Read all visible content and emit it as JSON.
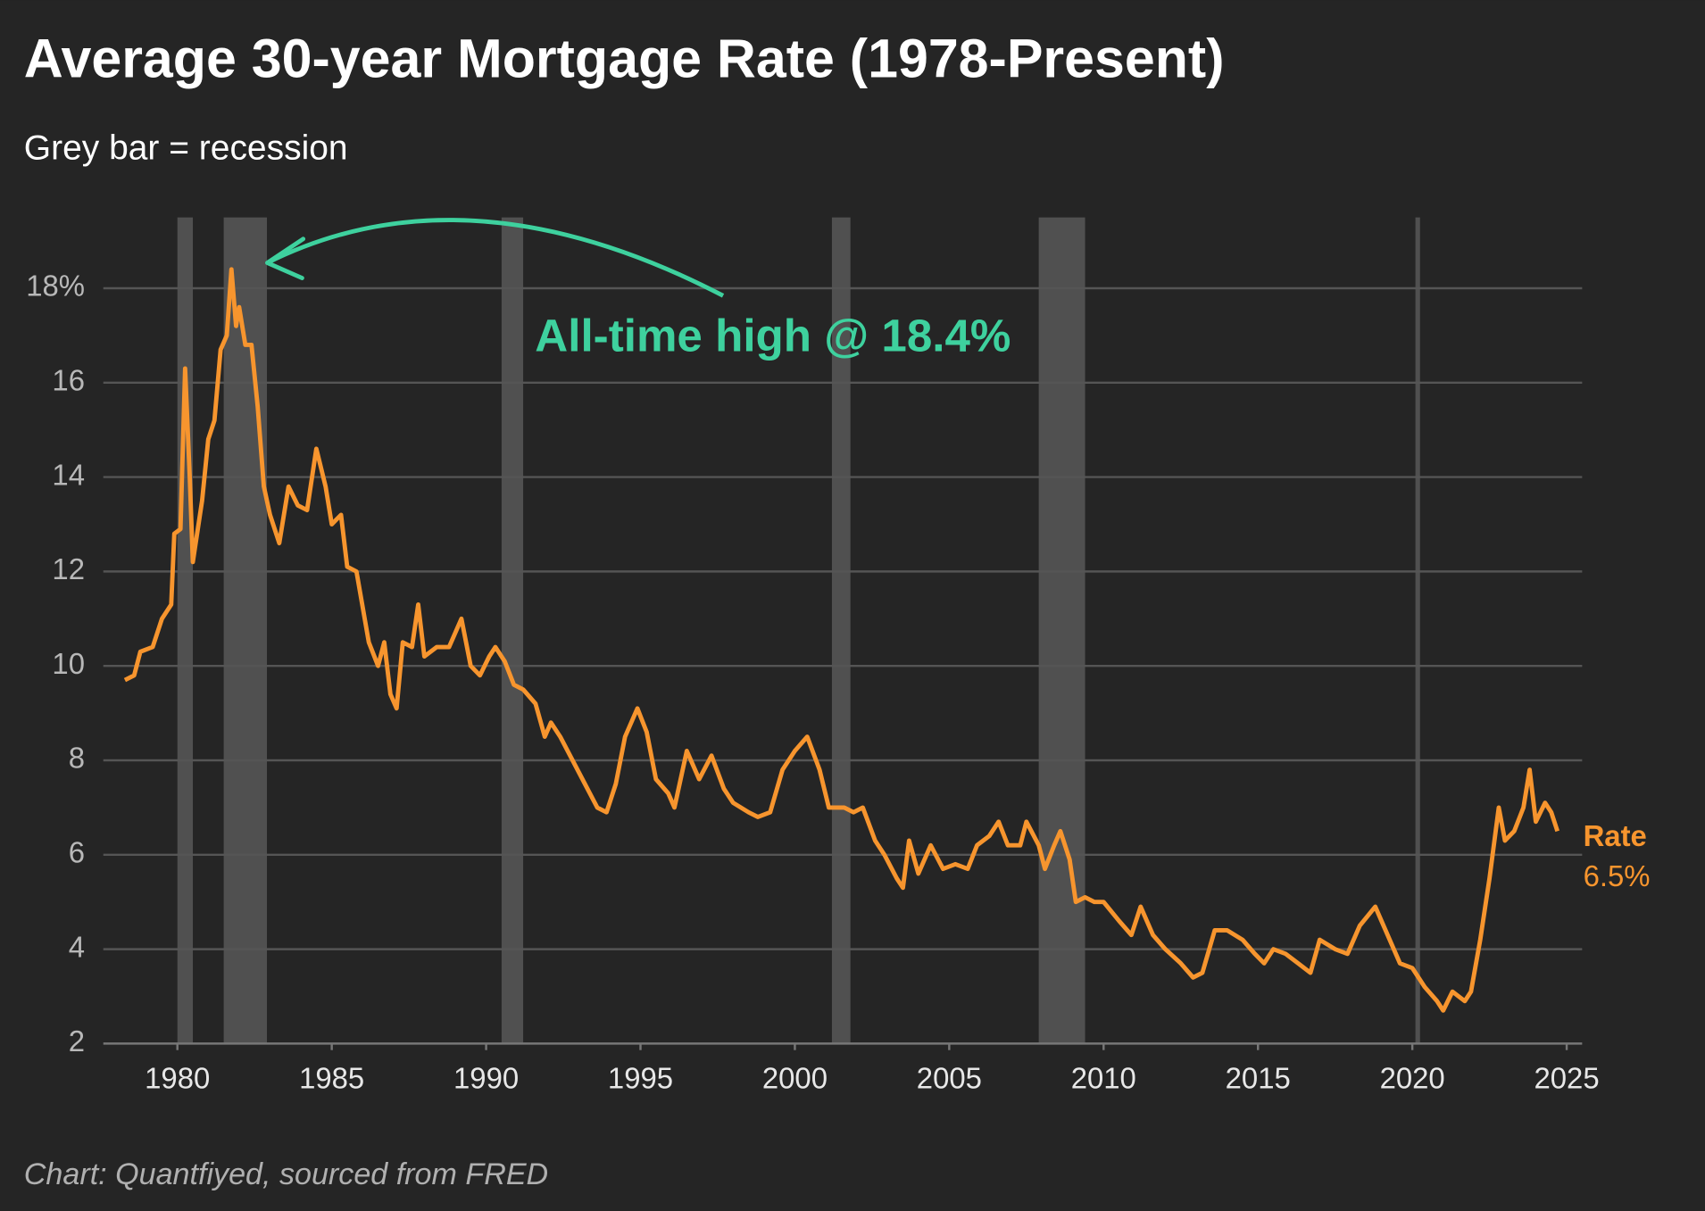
{
  "chart_data": {
    "type": "line",
    "title": "Average 30-year Mortgage Rate (1978-Present)",
    "subtitle": "Grey bar = recession",
    "source": "Chart: Quantfiyed, sourced from FRED",
    "xlim": [
      1977.6,
      2025.5
    ],
    "ylim": [
      2,
      19.5
    ],
    "xticks": [
      1980,
      1985,
      1990,
      1995,
      2000,
      2005,
      2010,
      2015,
      2020,
      2025
    ],
    "yticks": [
      2,
      4,
      6,
      8,
      10,
      12,
      14,
      16,
      {
        "value": 18,
        "label": "18%"
      }
    ],
    "grid": true,
    "recession_color": "#505050",
    "recessions": [
      [
        1980.0,
        1980.5
      ],
      [
        1981.5,
        1982.9
      ],
      [
        1990.5,
        1991.2
      ],
      [
        2001.2,
        2001.8
      ],
      [
        2007.9,
        2009.4
      ],
      [
        2020.1,
        2020.25
      ]
    ],
    "annotations": [
      {
        "text": "All-time high @ 18.4%",
        "x": 1981.75,
        "y": 18.4,
        "color": "#3ed19e"
      }
    ],
    "end_label": "6.5%",
    "x": [
      1978.3,
      1978.6,
      1978.8,
      1979.2,
      1979.5,
      1979.8,
      1979.9,
      1980.1,
      1980.25,
      1980.4,
      1980.5,
      1980.8,
      1981.0,
      1981.2,
      1981.4,
      1981.6,
      1981.75,
      1981.9,
      1982.0,
      1982.2,
      1982.4,
      1982.6,
      1982.8,
      1983.0,
      1983.3,
      1983.6,
      1983.9,
      1984.2,
      1984.5,
      1984.8,
      1985.0,
      1985.3,
      1985.5,
      1985.8,
      1986.2,
      1986.5,
      1986.7,
      1986.9,
      1987.1,
      1987.3,
      1987.6,
      1987.8,
      1988.0,
      1988.4,
      1988.8,
      1989.2,
      1989.5,
      1989.8,
      1990.1,
      1990.3,
      1990.6,
      1990.9,
      1991.2,
      1991.6,
      1991.9,
      1992.1,
      1992.4,
      1992.8,
      1993.2,
      1993.6,
      1993.9,
      1994.2,
      1994.5,
      1994.9,
      1995.2,
      1995.5,
      1995.9,
      1996.1,
      1996.5,
      1996.9,
      1997.3,
      1997.7,
      1998.0,
      1998.5,
      1998.8,
      1999.2,
      1999.6,
      2000.0,
      2000.4,
      2000.8,
      2001.1,
      2001.6,
      2001.9,
      2002.2,
      2002.6,
      2002.9,
      2003.3,
      2003.5,
      2003.7,
      2004.0,
      2004.4,
      2004.8,
      2005.2,
      2005.6,
      2005.9,
      2006.3,
      2006.6,
      2006.9,
      2007.3,
      2007.5,
      2007.9,
      2008.1,
      2008.4,
      2008.6,
      2008.9,
      2009.1,
      2009.4,
      2009.7,
      2010.0,
      2010.5,
      2010.9,
      2011.2,
      2011.6,
      2012.0,
      2012.5,
      2012.9,
      2013.2,
      2013.6,
      2014.0,
      2014.5,
      2014.9,
      2015.2,
      2015.5,
      2015.9,
      2016.3,
      2016.7,
      2017.0,
      2017.5,
      2017.9,
      2018.3,
      2018.8,
      2019.2,
      2019.6,
      2020.0,
      2020.4,
      2020.8,
      2021.0,
      2021.3,
      2021.7,
      2021.9,
      2022.2,
      2022.5,
      2022.8,
      2023.0,
      2023.3,
      2023.6,
      2023.8,
      2024.0,
      2024.3,
      2024.5,
      2024.7
    ],
    "series": [
      {
        "name": "Rate",
        "color": "#f7952e",
        "values": [
          9.7,
          9.8,
          10.3,
          10.4,
          11.0,
          11.3,
          12.8,
          12.9,
          16.3,
          14.0,
          12.2,
          13.5,
          14.8,
          15.2,
          16.7,
          17.0,
          18.4,
          17.2,
          17.6,
          16.8,
          16.8,
          15.5,
          13.8,
          13.2,
          12.6,
          13.8,
          13.4,
          13.3,
          14.6,
          13.8,
          13.0,
          13.2,
          12.1,
          12.0,
          10.5,
          10.0,
          10.5,
          9.4,
          9.1,
          10.5,
          10.4,
          11.3,
          10.2,
          10.4,
          10.4,
          11.0,
          10.0,
          9.8,
          10.2,
          10.4,
          10.1,
          9.6,
          9.5,
          9.2,
          8.5,
          8.8,
          8.5,
          8.0,
          7.5,
          7.0,
          6.9,
          7.5,
          8.5,
          9.1,
          8.6,
          7.6,
          7.3,
          7.0,
          8.2,
          7.6,
          8.1,
          7.4,
          7.1,
          6.9,
          6.8,
          6.9,
          7.8,
          8.2,
          8.5,
          7.8,
          7.0,
          7.0,
          6.9,
          7.0,
          6.3,
          6.0,
          5.5,
          5.3,
          6.3,
          5.6,
          6.2,
          5.7,
          5.8,
          5.7,
          6.2,
          6.4,
          6.7,
          6.2,
          6.2,
          6.7,
          6.2,
          5.7,
          6.2,
          6.5,
          5.9,
          5.0,
          5.1,
          5.0,
          5.0,
          4.6,
          4.3,
          4.9,
          4.3,
          4.0,
          3.7,
          3.4,
          3.5,
          4.4,
          4.4,
          4.2,
          3.9,
          3.7,
          4.0,
          3.9,
          3.7,
          3.5,
          4.2,
          4.0,
          3.9,
          4.5,
          4.9,
          4.3,
          3.7,
          3.6,
          3.2,
          2.9,
          2.7,
          3.1,
          2.9,
          3.1,
          4.2,
          5.5,
          7.0,
          6.3,
          6.5,
          7.0,
          7.8,
          6.7,
          7.1,
          6.9,
          6.5
        ]
      }
    ]
  }
}
